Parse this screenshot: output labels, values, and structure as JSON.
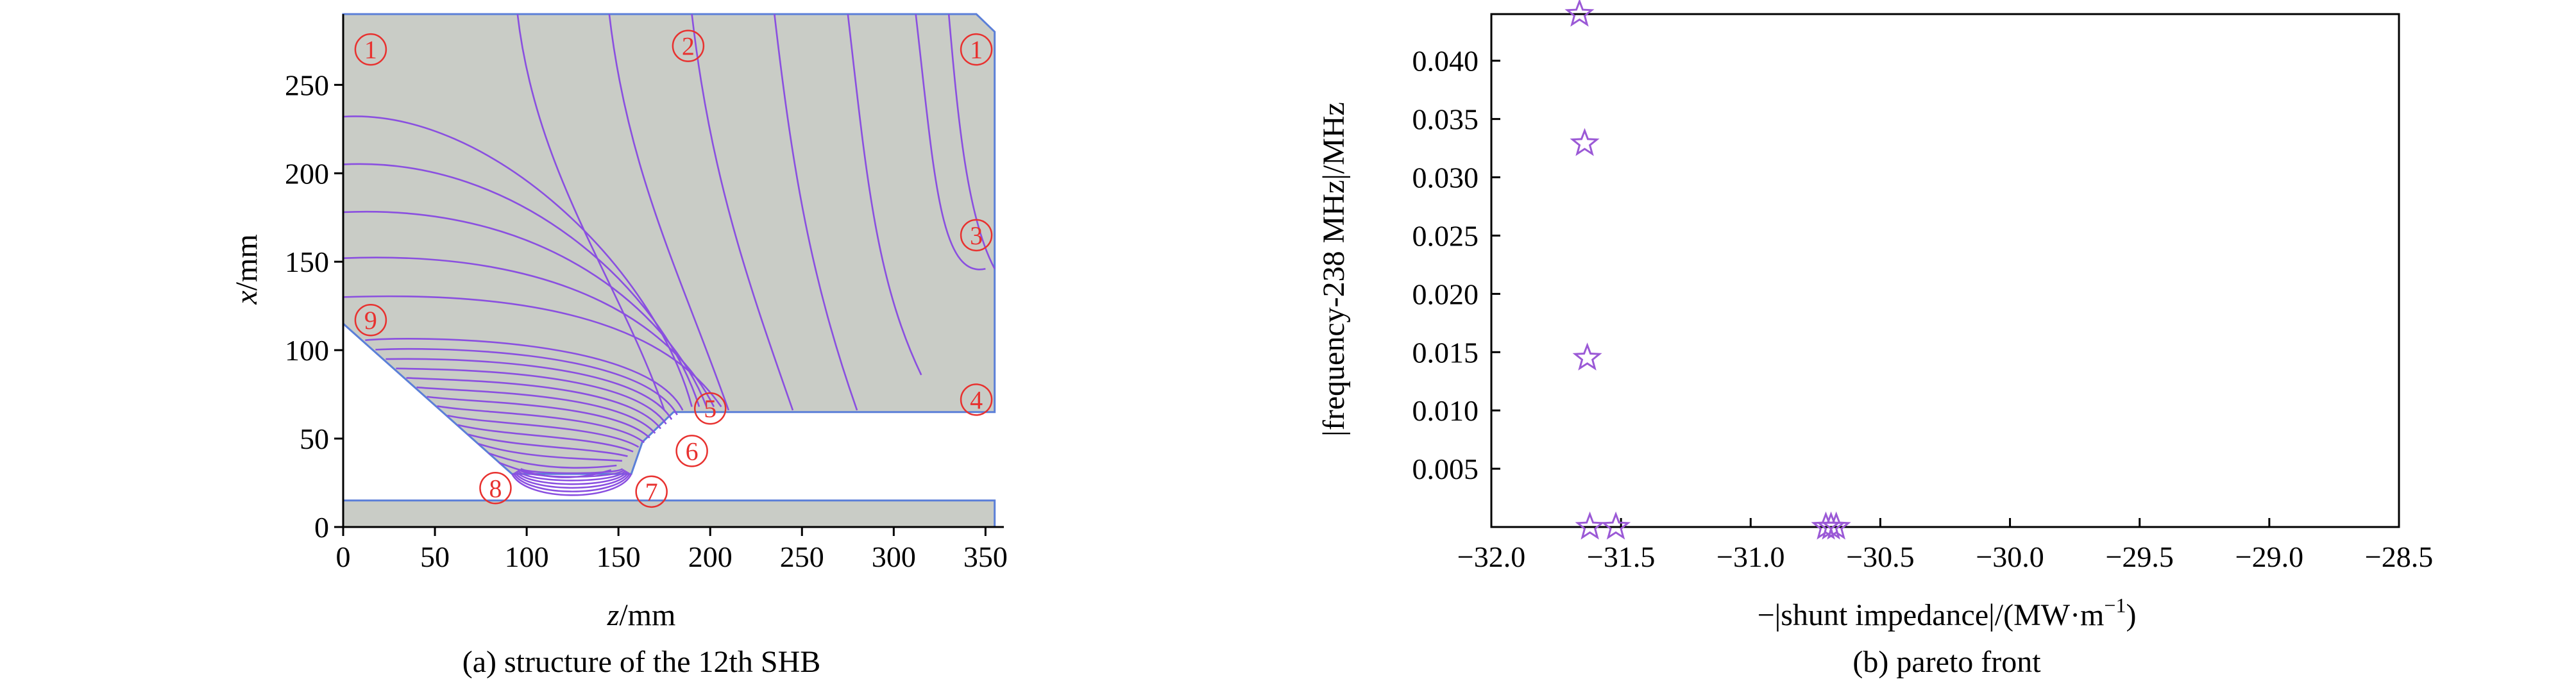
{
  "chart_data": [
    {
      "type": "contour",
      "panel": "a",
      "caption": "(a) structure of the 12th SHB",
      "xlabel_var": "z",
      "xlabel_unit": "/mm",
      "ylabel_var": "x",
      "ylabel_unit": "/mm",
      "xlim": [
        0,
        360
      ],
      "ylim": [
        0,
        290
      ],
      "xticks": [
        "0",
        "50",
        "100",
        "150",
        "200",
        "250",
        "300",
        "350"
      ],
      "yticks": [
        "0",
        "50",
        "100",
        "150",
        "200",
        "250"
      ],
      "xtick_values": [
        0,
        50,
        100,
        150,
        200,
        250,
        300,
        350
      ],
      "ytick_values": [
        0,
        50,
        100,
        150,
        200,
        250
      ],
      "region_color": "#c9ccc6",
      "line_color": "#8a4fe0",
      "outline_color": "#5b7fd8",
      "marker_color": "#e8312f",
      "boundary": [
        [
          0,
          290
        ],
        [
          345,
          290
        ],
        [
          355,
          280
        ],
        [
          355,
          65
        ],
        [
          180,
          65
        ],
        [
          163,
          48
        ],
        [
          157,
          30
        ],
        [
          92,
          30
        ],
        [
          0,
          115
        ]
      ],
      "bar": [
        [
          0,
          0
        ],
        [
          355,
          0
        ],
        [
          355,
          15
        ],
        [
          0,
          15
        ]
      ],
      "markers": [
        {
          "label": "1",
          "z": 15,
          "x": 270
        },
        {
          "label": "2",
          "z": 188,
          "x": 272
        },
        {
          "label": "1",
          "z": 345,
          "x": 270
        },
        {
          "label": "3",
          "z": 345,
          "x": 165
        },
        {
          "label": "4",
          "z": 345,
          "x": 72
        },
        {
          "label": "5",
          "z": 200,
          "x": 67
        },
        {
          "label": "6",
          "z": 190,
          "x": 43
        },
        {
          "label": "7",
          "z": 168,
          "x": 20
        },
        {
          "label": "8",
          "z": 83,
          "x": 22
        },
        {
          "label": "9",
          "z": 15,
          "x": 117
        }
      ]
    },
    {
      "type": "scatter",
      "panel": "b",
      "caption": "(b) pareto front",
      "xlabel": "−|shunt impedance|/(MW·m",
      "xlabel_sup": "−1",
      "xlabel_tail": ")",
      "ylabel": "|frequency-238 MHz|/MHz",
      "xlim": [
        -32.0,
        -28.5
      ],
      "ylim": [
        0.0,
        0.044
      ],
      "xticks": [
        "−32.0",
        "−31.5",
        "−31.0",
        "−30.5",
        "−30.0",
        "−29.5",
        "−29.0",
        "−28.5"
      ],
      "xtick_values": [
        -32.0,
        -31.5,
        -31.0,
        -30.5,
        -30.0,
        -29.5,
        -29.0,
        -28.5
      ],
      "yticks": [
        "0.005",
        "0.010",
        "0.015",
        "0.020",
        "0.025",
        "0.030",
        "0.035",
        "0.040"
      ],
      "ytick_values": [
        0.005,
        0.01,
        0.015,
        0.02,
        0.025,
        0.03,
        0.035,
        0.04
      ],
      "marker": "star",
      "marker_color": "#9b59d6",
      "points": [
        {
          "x": -31.66,
          "y": 0.044
        },
        {
          "x": -31.64,
          "y": 0.0329
        },
        {
          "x": -31.63,
          "y": 0.0145
        },
        {
          "x": -31.62,
          "y": 0.0
        },
        {
          "x": -31.52,
          "y": 0.0
        },
        {
          "x": -30.71,
          "y": 0.0
        },
        {
          "x": -30.69,
          "y": 0.0
        },
        {
          "x": -30.67,
          "y": 0.0
        }
      ]
    }
  ]
}
